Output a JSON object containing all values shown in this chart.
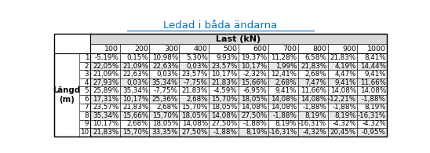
{
  "title": "Ledad i båda ändarna",
  "col_header_top": "Last (kN)",
  "col_labels": [
    "100",
    "200",
    "300",
    "400",
    "500",
    "600",
    "700",
    "800",
    "900",
    "1000"
  ],
  "row_label_outer": "Längd\n(m)",
  "row_labels": [
    "1",
    "2",
    "3",
    "4",
    "5",
    "6",
    "7",
    "8",
    "9",
    "10"
  ],
  "table_data": [
    [
      "-5,19%",
      "0,15%",
      "10,98%",
      "5,30%",
      "9,93%",
      "19,37%",
      "11,28%",
      "6,58%",
      "21,83%",
      "8,41%"
    ],
    [
      "22,05%",
      "21,09%",
      "22,63%",
      "0,03%",
      "23,57%",
      "10,17%",
      "1,99%",
      "21,83%",
      "4,19%",
      "14,44%"
    ],
    [
      "21,09%",
      "22,63%",
      "0,03%",
      "23,57%",
      "10,17%",
      "-2,32%",
      "12,41%",
      "2,68%",
      "4,47%",
      "9,41%"
    ],
    [
      "27,93%",
      "0,03%",
      "35,34%",
      "-7,75%",
      "21,83%",
      "15,66%",
      "2,68%",
      "7,47%",
      "9,41%",
      "11,66%"
    ],
    [
      "25,89%",
      "35,34%",
      "-7,75%",
      "21,83%",
      "-4,59%",
      "-6,95%",
      "9,41%",
      "11,66%",
      "14,08%",
      "14,08%"
    ],
    [
      "17,31%",
      "10,17%",
      "25,36%",
      "2,68%",
      "15,70%",
      "18,05%",
      "14,08%",
      "14,08%",
      "-12,21%",
      "-1,88%"
    ],
    [
      "23,57%",
      "21,83%",
      "2,68%",
      "15,70%",
      "18,05%",
      "14,08%",
      "14,08%",
      "-1,88%",
      "-1,88%",
      "8,19%"
    ],
    [
      "35,34%",
      "15,66%",
      "15,70%",
      "18,05%",
      "14,08%",
      "27,50%",
      "-1,88%",
      "8,19%",
      "8,19%",
      "-16,31%"
    ],
    [
      "10,17%",
      "2,68%",
      "18,05%",
      "14,08%",
      "27,50%",
      "-1,88%",
      "8,19%",
      "-16,31%",
      "-4,32%",
      "-4,32%"
    ],
    [
      "21,83%",
      "15,70%",
      "33,35%",
      "27,50%",
      "-1,88%",
      "8,19%",
      "-16,31%",
      "-4,32%",
      "20,45%",
      "-0,95%"
    ]
  ],
  "bg_header": "#d9d9d9",
  "bg_white": "#ffffff",
  "bg_light": "#e8e8e8",
  "border_color": "#000000",
  "title_color": "#0070c0",
  "font_size": 6.8,
  "header_font_size": 8.0
}
